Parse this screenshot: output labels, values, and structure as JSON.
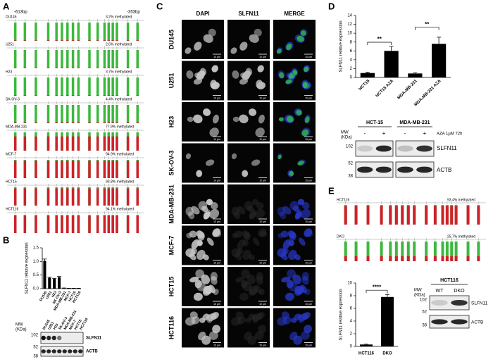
{
  "panel_labels": [
    "A",
    "B",
    "C",
    "D",
    "E"
  ],
  "panel_a": {
    "start": "-613bp",
    "end": "-353bp",
    "rows": [
      {
        "name": "DU145",
        "methylated": 3.2,
        "label": "3.2% methylated"
      },
      {
        "name": "U251",
        "methylated": 2.6,
        "label": "2.6% methylated"
      },
      {
        "name": "H23",
        "methylated": 3.7,
        "label": "3.7% methylated"
      },
      {
        "name": "SK-OV-3",
        "methylated": 4.4,
        "label": "4.4% methylated"
      },
      {
        "name": "MDA-MB-231",
        "methylated": 77.9,
        "label": "77.9% methylated"
      },
      {
        "name": "MCF-7",
        "methylated": 94.9,
        "label": "94.9% methylated"
      },
      {
        "name": "HCT15",
        "methylated": 93.8,
        "label": "93.8% methylated"
      },
      {
        "name": "HCT116",
        "methylated": 94.1,
        "label": "94.1% methylated"
      }
    ]
  },
  "panel_b_blot": {
    "mw": [
      "MW",
      "(KDa)"
    ],
    "markers": [
      102,
      52,
      38
    ],
    "lanes": [
      "DU145",
      "U251",
      "H23",
      "SK-OV-3",
      "MDA-MB-231",
      "MCF-7",
      "HCT15",
      "HCT116"
    ],
    "bands": [
      "SLFN11",
      "ACTB"
    ]
  },
  "panel_c": {
    "columns": [
      "DAPI",
      "SLFN11",
      "MERGE"
    ],
    "rows": [
      "DU145",
      "U251",
      "H23",
      "SK-OV-3",
      "MDA-MB-231",
      "MCF-7",
      "HCT15",
      "HCT116"
    ],
    "scale": "10 µm"
  },
  "panel_d_blot": {
    "groups": [
      "HCT-15",
      "MDA-MB-231"
    ],
    "treatment": "AZA 1µM 72h",
    "signs": [
      "-",
      "+",
      "-",
      "+"
    ],
    "mw": [
      "MW",
      "(KDa)"
    ],
    "markers": [
      102,
      52,
      38
    ],
    "bands": [
      "SLFN11",
      "ACTB"
    ]
  },
  "panel_e": {
    "rows": [
      {
        "name": "HCT116",
        "methylated": 93.4,
        "label": "93.4% methylated"
      },
      {
        "name": "DKO",
        "methylated": 25.7,
        "label": "25.7% methylated"
      }
    ]
  },
  "panel_e_blot": {
    "cell_line": "HCT116",
    "lanes": [
      "WT",
      "DKO"
    ],
    "mw": [
      "MW",
      "(KDa)"
    ],
    "markers": [
      102,
      52,
      38
    ],
    "bands": [
      "SLFN11",
      "ACTB"
    ]
  },
  "chart_data": [
    {
      "type": "bar",
      "y_label": "SLFN11 relative expression",
      "categories": [
        "DU145",
        "U251",
        "H23",
        "SK-OV-3",
        "MDA-MB-231",
        "MCF-7",
        "HCT15",
        "HCT116"
      ],
      "values": [
        1.02,
        0.4,
        0.36,
        0.42,
        0.02,
        0.01,
        0.01,
        0.01
      ],
      "errors": [
        0.07,
        0.02,
        0.02,
        0.03,
        0.005,
        0.005,
        0.005,
        0.005
      ],
      "color": "#000000",
      "ylim": [
        0,
        1.5
      ],
      "yticks": [
        {
          "value": 0,
          "label": "0.0"
        },
        {
          "value": 0.5,
          "label": "0.5"
        },
        {
          "value": 1,
          "label": "1.0"
        },
        {
          "value": 1.5,
          "label": "1.5"
        }
      ]
    },
    {
      "type": "bar",
      "y_label": "SLFN11 relative expression",
      "categories": [
        "HCT15",
        "HCT15 AZA",
        "MDA-MB-231",
        "MDA-MB-231 AZA"
      ],
      "values": [
        1.0,
        6.0,
        0.9,
        7.6
      ],
      "errors": [
        0.2,
        1.0,
        0.15,
        1.5
      ],
      "color": "#000000",
      "ylim": [
        0,
        14
      ],
      "yticks": [
        0,
        2,
        4,
        6,
        8,
        10,
        12,
        14
      ],
      "annotations": [
        "**",
        "**"
      ],
      "pairs": [
        [
          0,
          1
        ],
        [
          2,
          3
        ]
      ]
    },
    {
      "type": "bar",
      "y_label": "SLFN11 relative expression",
      "categories": [
        "HCT116",
        "DKO"
      ],
      "values": [
        0.3,
        7.8
      ],
      "errors": [
        0.05,
        0.4
      ],
      "color": "#000000",
      "ylim": [
        0,
        10
      ],
      "yticks": [
        0,
        2,
        4,
        6,
        8,
        10
      ],
      "annotations": [
        "****"
      ],
      "pairs": [
        [
          0,
          1
        ]
      ]
    }
  ]
}
